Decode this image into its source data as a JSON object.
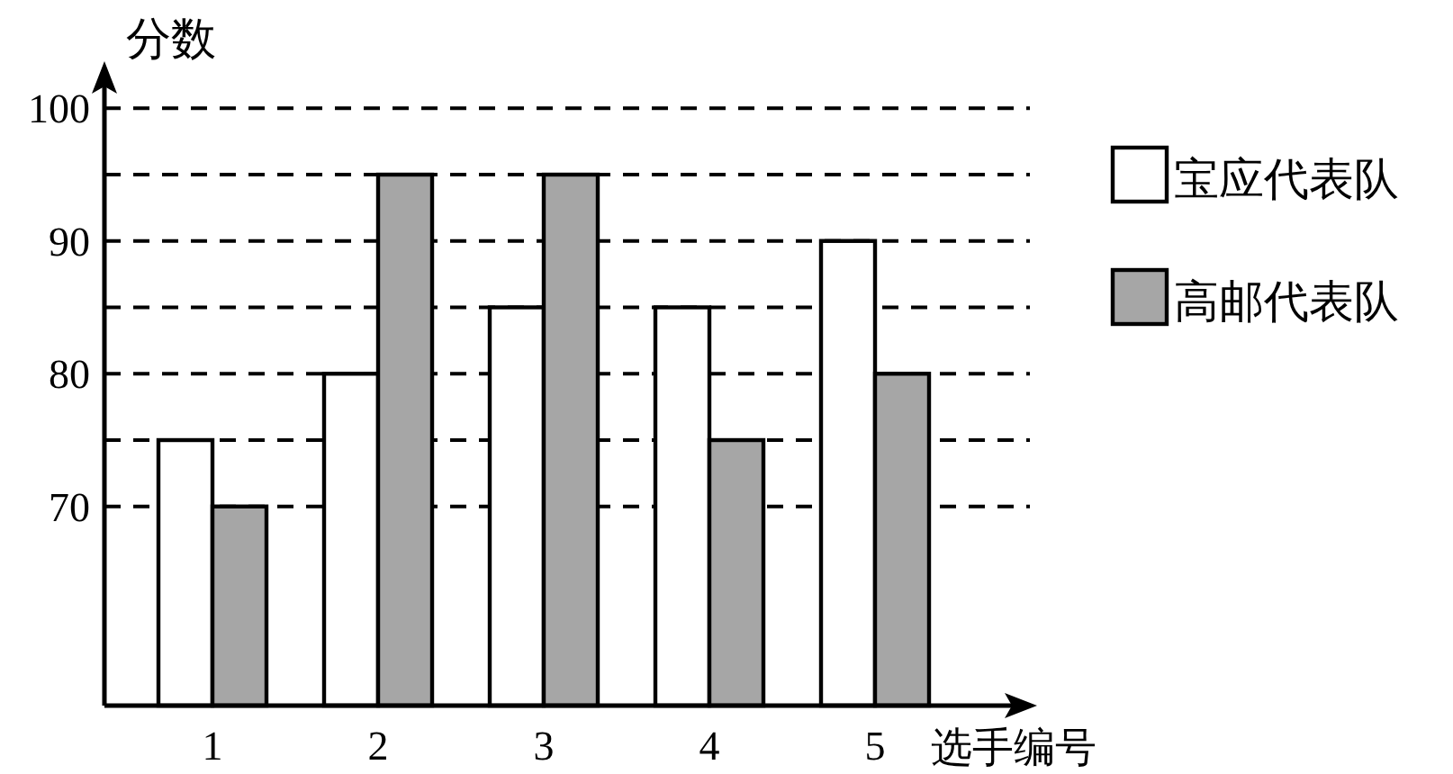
{
  "chart_data": {
    "type": "bar",
    "categories": [
      "1",
      "2",
      "3",
      "4",
      "5"
    ],
    "series": [
      {
        "name": "宝应代表队",
        "color": "#ffffff",
        "values": [
          75,
          80,
          85,
          85,
          90
        ]
      },
      {
        "name": "高邮代表队",
        "color": "#a6a6a6",
        "values": [
          70,
          95,
          95,
          75,
          80
        ]
      }
    ],
    "ylim": [
      55,
      103
    ],
    "yticks": [
      {
        "value": 70,
        "label": "70"
      },
      {
        "value": 75,
        "label": null
      },
      {
        "value": 80,
        "label": "80"
      },
      {
        "value": 85,
        "label": null
      },
      {
        "value": 90,
        "label": "90"
      },
      {
        "value": 95,
        "label": null
      },
      {
        "value": 100,
        "label": "100"
      }
    ],
    "grid": "y",
    "legend": "right",
    "xlabel": "选手编号",
    "ylabel": "分数"
  }
}
